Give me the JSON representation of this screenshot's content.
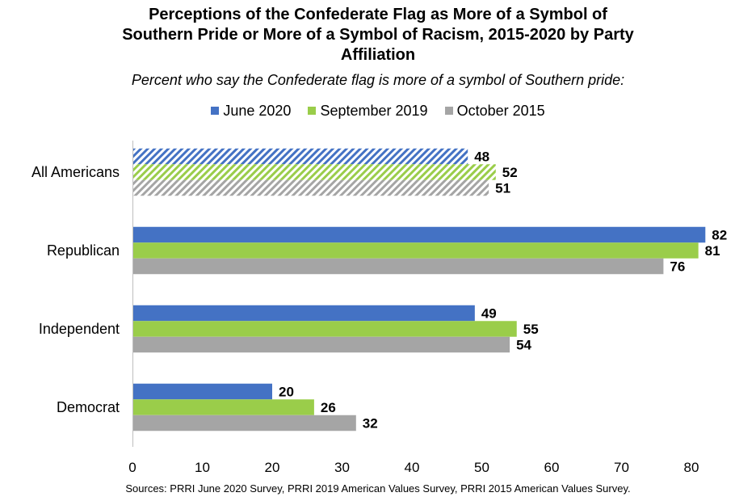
{
  "chart_data": {
    "type": "bar",
    "orientation": "horizontal",
    "title_lines": [
      "Perceptions of the Confederate Flag as More of a Symbol of",
      "Southern Pride or More of a Symbol of Racism, 2015-2020 by Party",
      "Affiliation"
    ],
    "subtitle": "Percent who say the Confederate flag is more of a symbol of Southern pride:",
    "categories": [
      "All Americans",
      "Republican",
      "Independent",
      "Democrat"
    ],
    "series": [
      {
        "name": "June 2020",
        "color": "#4472c4",
        "values": [
          48,
          82,
          49,
          20
        ]
      },
      {
        "name": "September 2019",
        "color": "#9acd4a",
        "values": [
          52,
          81,
          55,
          26
        ]
      },
      {
        "name": "October 2015",
        "color": "#a5a5a5",
        "values": [
          51,
          76,
          54,
          32
        ]
      }
    ],
    "hatched_categories": [
      "All Americans"
    ],
    "xlim": [
      0,
      80
    ],
    "xticks": [
      "0",
      "10",
      "20",
      "30",
      "40",
      "50",
      "60",
      "70",
      "80"
    ],
    "legend_position": "top",
    "grid": false
  },
  "footer": {
    "source": "Sources: PRRI June 2020 Survey, PRRI 2019 American Values Survey, PRRI 2015 American Values Survey."
  }
}
